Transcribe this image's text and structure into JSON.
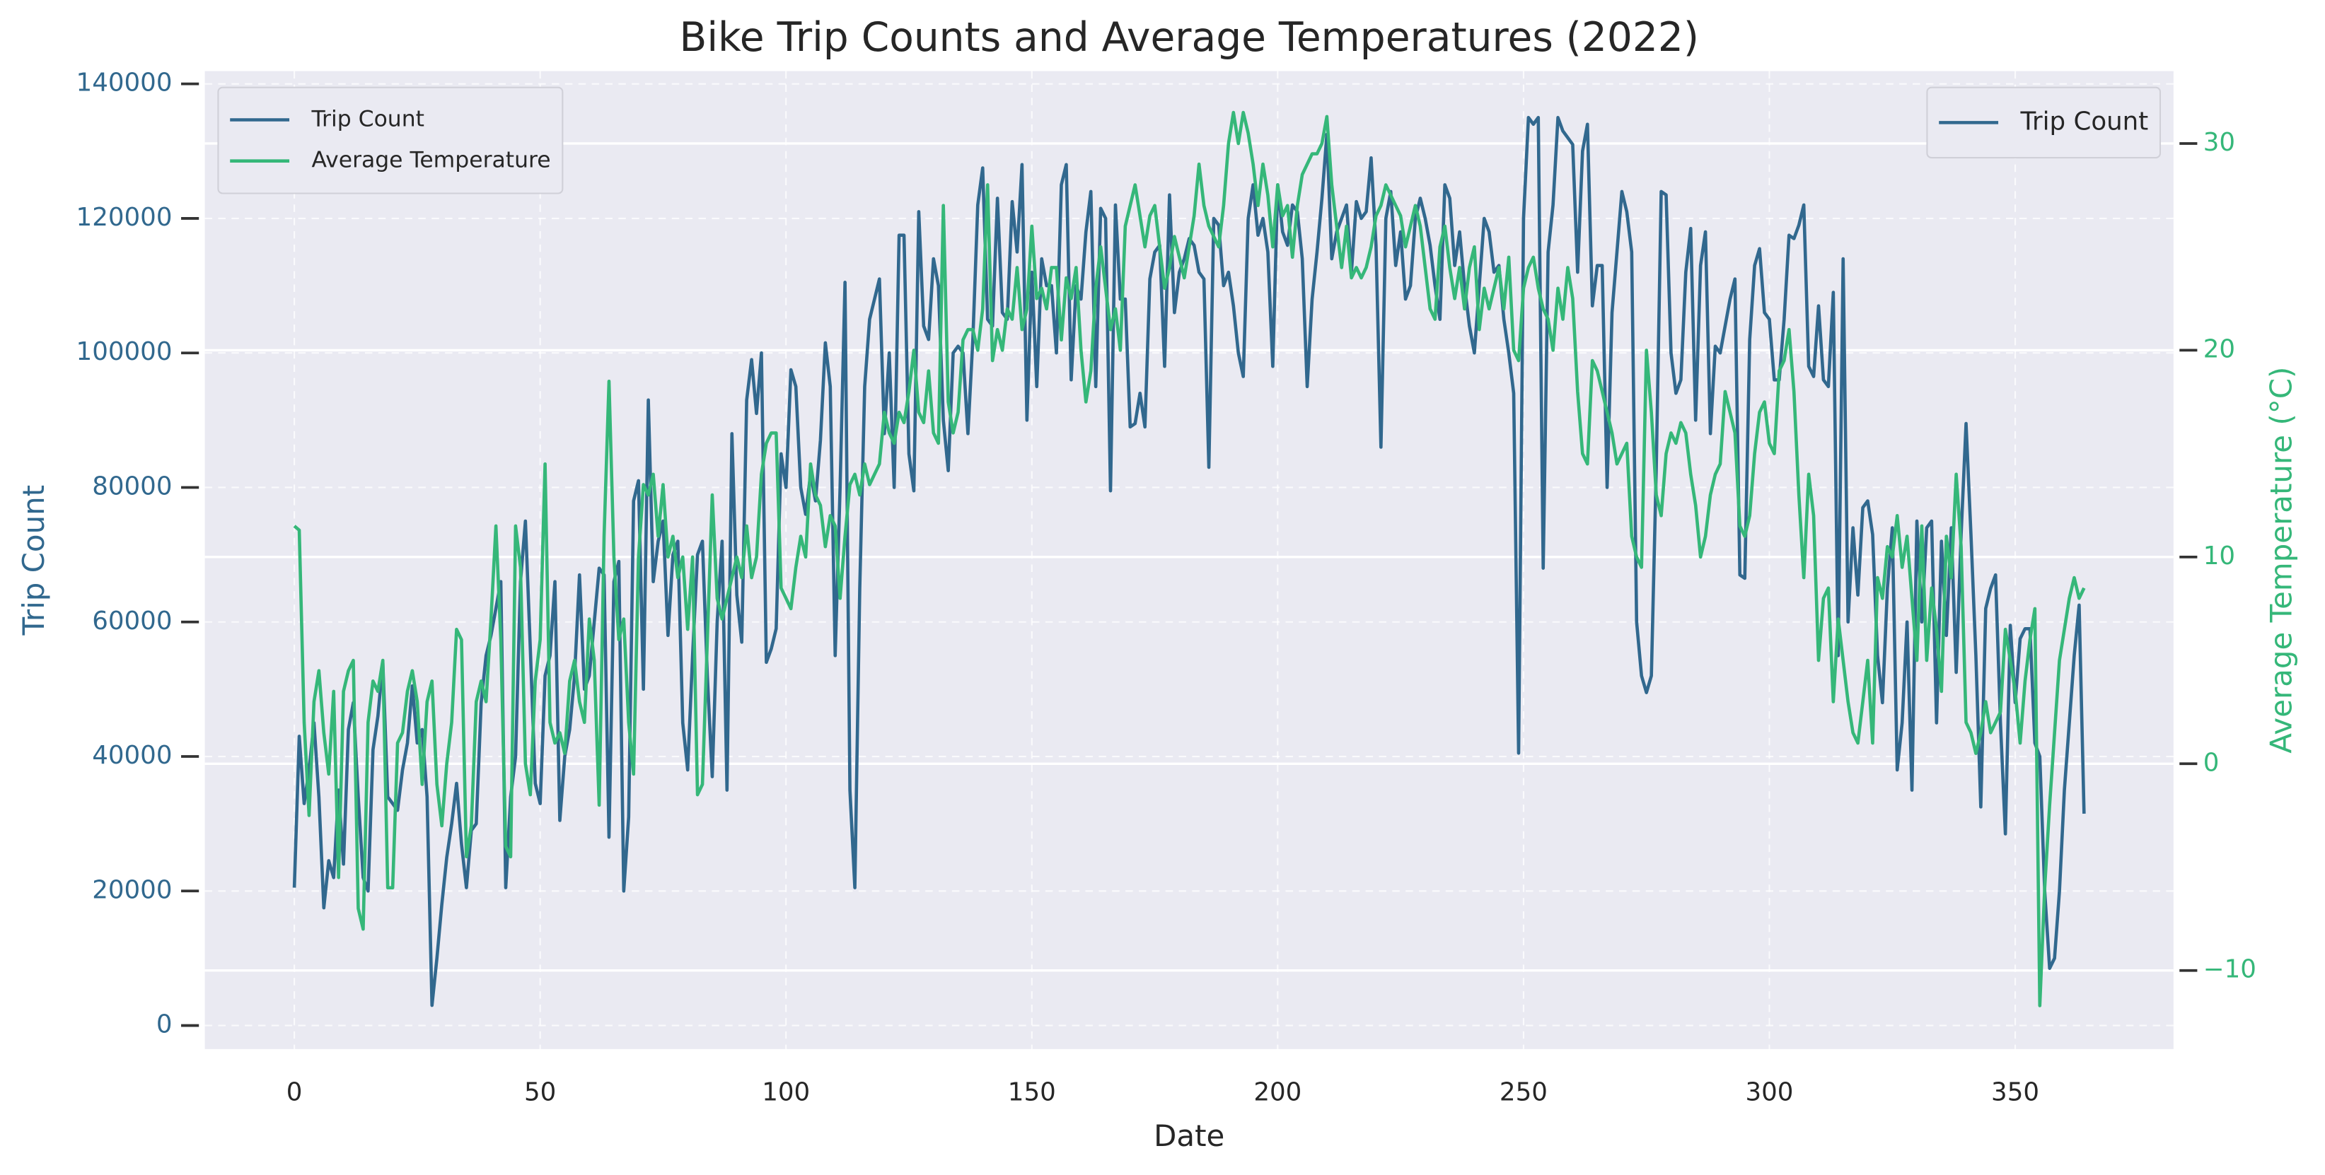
{
  "chart_data": {
    "type": "line",
    "title": "Bike Trip Counts and Average Temperatures (2022)",
    "xlabel": "Date",
    "ylabel": "Trip Count",
    "y2label": "Average Temperature (°C)",
    "x": [
      0,
      1,
      2,
      3,
      4,
      5,
      6,
      7,
      8,
      9,
      10,
      11,
      12,
      13,
      14,
      15,
      16,
      17,
      18,
      19,
      20,
      21,
      22,
      23,
      24,
      25,
      26,
      27,
      28,
      29,
      30,
      31,
      32,
      33,
      34,
      35,
      36,
      37,
      38,
      39,
      40,
      41,
      42,
      43,
      44,
      45,
      46,
      47,
      48,
      49,
      50,
      51,
      52,
      53,
      54,
      55,
      56,
      57,
      58,
      59,
      60,
      61,
      62,
      63,
      64,
      65,
      66,
      67,
      68,
      69,
      70,
      71,
      72,
      73,
      74,
      75,
      76,
      77,
      78,
      79,
      80,
      81,
      82,
      83,
      84,
      85,
      86,
      87,
      88,
      89,
      90,
      91,
      92,
      93,
      94,
      95,
      96,
      97,
      98,
      99,
      100,
      101,
      102,
      103,
      104,
      105,
      106,
      107,
      108,
      109,
      110,
      111,
      112,
      113,
      114,
      115,
      116,
      117,
      118,
      119,
      120,
      121,
      122,
      123,
      124,
      125,
      126,
      127,
      128,
      129,
      130,
      131,
      132,
      133,
      134,
      135,
      136,
      137,
      138,
      139,
      140,
      141,
      142,
      143,
      144,
      145,
      146,
      147,
      148,
      149,
      150,
      151,
      152,
      153,
      154,
      155,
      156,
      157,
      158,
      159,
      160,
      161,
      162,
      163,
      164,
      165,
      166,
      167,
      168,
      169,
      170,
      171,
      172,
      173,
      174,
      175,
      176,
      177,
      178,
      179,
      180,
      181,
      182,
      183,
      184,
      185,
      186,
      187,
      188,
      189,
      190,
      191,
      192,
      193,
      194,
      195,
      196,
      197,
      198,
      199,
      200,
      201,
      202,
      203,
      204,
      205,
      206,
      207,
      208,
      209,
      210,
      211,
      212,
      213,
      214,
      215,
      216,
      217,
      218,
      219,
      220,
      221,
      222,
      223,
      224,
      225,
      226,
      227,
      228,
      229,
      230,
      231,
      232,
      233,
      234,
      235,
      236,
      237,
      238,
      239,
      240,
      241,
      242,
      243,
      244,
      245,
      246,
      247,
      248,
      249,
      250,
      251,
      252,
      253,
      254,
      255,
      256,
      257,
      258,
      259,
      260,
      261,
      262,
      263,
      264,
      265,
      266,
      267,
      268,
      269,
      270,
      271,
      272,
      273,
      274,
      275,
      276,
      277,
      278,
      279,
      280,
      281,
      282,
      283,
      284,
      285,
      286,
      287,
      288,
      289,
      290,
      291,
      292,
      293,
      294,
      295,
      296,
      297,
      298,
      299,
      300,
      301,
      302,
      303,
      304,
      305,
      306,
      307,
      308,
      309,
      310,
      311,
      312,
      313,
      314,
      315,
      316,
      317,
      318,
      319,
      320,
      321,
      322,
      323,
      324,
      325,
      326,
      327,
      328,
      329,
      330,
      331,
      332,
      333,
      334,
      335,
      336,
      337,
      338,
      339,
      340,
      341,
      342,
      343,
      344,
      345,
      346,
      347,
      348,
      349,
      350,
      351,
      352,
      353,
      354,
      355,
      356,
      357,
      358,
      359,
      360,
      361,
      362,
      363,
      364
    ],
    "series": [
      {
        "name": "Trip Count",
        "color": "#31688e",
        "axis": "y",
        "values": [
          20500,
          43000,
          33000,
          38000,
          45000,
          34000,
          17500,
          24500,
          22000,
          35000,
          24000,
          44000,
          48000,
          34000,
          22000,
          20000,
          41000,
          46000,
          54000,
          34000,
          33000,
          32000,
          38000,
          42000,
          50500,
          42000,
          44000,
          34000,
          3000,
          10000,
          18000,
          25000,
          30000,
          36000,
          27000,
          20500,
          29000,
          30000,
          48000,
          55000,
          58000,
          62000,
          66000,
          20500,
          34000,
          40000,
          66000,
          75000,
          56000,
          36000,
          33000,
          52000,
          55000,
          66000,
          30500,
          40000,
          44000,
          52000,
          67000,
          50000,
          52000,
          60000,
          68000,
          67000,
          28000,
          66000,
          69000,
          20000,
          31000,
          78000,
          81000,
          50000,
          93000,
          66000,
          72000,
          75000,
          58000,
          70000,
          72000,
          45000,
          38000,
          55000,
          70000,
          72000,
          52000,
          37000,
          60000,
          72000,
          35000,
          88000,
          64000,
          57000,
          93000,
          99000,
          91000,
          100000,
          54000,
          56000,
          59000,
          85000,
          80000,
          97500,
          95000,
          80000,
          76000,
          82000,
          78000,
          87000,
          101500,
          95000,
          55000,
          80000,
          110500,
          35000,
          20500,
          65000,
          95000,
          105000,
          108000,
          111000,
          88000,
          100000,
          80000,
          117500,
          117500,
          85000,
          79500,
          121000,
          104000,
          102000,
          114000,
          110000,
          90000,
          82500,
          100000,
          101000,
          100000,
          88000,
          102000,
          122000,
          127500,
          105000,
          104000,
          123000,
          106000,
          105000,
          122500,
          115000,
          128000,
          90000,
          112000,
          95000,
          114000,
          110000,
          110000,
          100000,
          125000,
          128000,
          96000,
          110000,
          108000,
          118000,
          124000,
          95000,
          121500,
          120000,
          79500,
          122000,
          108000,
          108000,
          89000,
          89500,
          94000,
          89000,
          111000,
          115000,
          116000,
          98000,
          123500,
          106000,
          112000,
          114000,
          117000,
          116000,
          112000,
          111000,
          83000,
          120000,
          119000,
          110000,
          112000,
          107000,
          100000,
          96500,
          120000,
          125000,
          117500,
          120000,
          115000,
          98000,
          125000,
          118000,
          116000,
          122000,
          121000,
          114000,
          95000,
          108000,
          115000,
          123000,
          132500,
          114000,
          118000,
          120000,
          122000,
          112000,
          122500,
          120000,
          121000,
          129000,
          116000,
          86000,
          120000,
          124000,
          113000,
          118000,
          108000,
          110000,
          120000,
          123000,
          120000,
          116000,
          110000,
          105000,
          125000,
          123000,
          113000,
          118000,
          110000,
          104000,
          100000,
          110000,
          120000,
          118000,
          112000,
          113000,
          105000,
          100000,
          94000,
          40500,
          120000,
          135000,
          134000,
          135000,
          68000,
          115000,
          122000,
          135000,
          133000,
          132000,
          131000,
          112000,
          130000,
          134000,
          107000,
          113000,
          113000,
          80000,
          106000,
          115000,
          124000,
          121000,
          115000,
          60000,
          52000,
          49500,
          52000,
          83000,
          124000,
          123500,
          100000,
          94000,
          96000,
          112000,
          118500,
          90000,
          113000,
          118000,
          88000,
          101000,
          100000,
          104000,
          108000,
          111000,
          67000,
          66500,
          102000,
          113000,
          115500,
          106000,
          105000,
          96000,
          96000,
          105000,
          117500,
          117000,
          119000,
          122000,
          98000,
          96500,
          107000,
          96000,
          95000,
          109000,
          55000,
          114000,
          60000,
          74000,
          64000,
          77000,
          78000,
          73000,
          55000,
          48000,
          65000,
          74000,
          38000,
          45000,
          60000,
          35000,
          75000,
          60000,
          74000,
          75000,
          45000,
          72000,
          58000,
          74000,
          52500,
          73000,
          89500,
          73000,
          55000,
          32500,
          62000,
          65000,
          67000,
          45000,
          28500,
          59500,
          48000,
          57500,
          59000,
          59000,
          42000,
          40000,
          20000,
          8500,
          10000,
          20000,
          35000,
          45000,
          55000,
          62500,
          31500
        ]
      },
      {
        "name": "Average Temperature",
        "color": "#35b779",
        "axis": "y2",
        "values": [
          11.5,
          11.3,
          2,
          -2.5,
          3,
          4.5,
          1.5,
          -0.5,
          3.5,
          -5.5,
          3.5,
          4.5,
          5,
          -7,
          -8,
          2,
          4,
          3.5,
          5,
          -6,
          -6,
          1,
          1.5,
          3.5,
          4.5,
          3,
          -1,
          3,
          4,
          -1,
          -3,
          0,
          2,
          6.5,
          6,
          -4.5,
          -3,
          3,
          4,
          3,
          7,
          11.5,
          6,
          -4,
          -4.5,
          11.5,
          9.5,
          0,
          -1.5,
          4,
          6,
          14.5,
          2,
          1,
          1.5,
          0.5,
          4,
          5,
          3,
          2,
          7,
          5,
          -2,
          11,
          18.5,
          10,
          6,
          7,
          2,
          -0.5,
          10,
          13.5,
          13,
          14,
          11,
          13.5,
          10,
          11,
          9,
          10,
          6.5,
          10,
          -1.5,
          -1,
          6,
          13,
          8,
          7,
          8,
          9,
          10,
          9,
          11.5,
          9,
          10,
          14,
          15.5,
          16,
          16,
          8.5,
          8,
          7.5,
          9.5,
          11,
          10,
          14.5,
          13,
          12.5,
          10.5,
          12,
          11.5,
          8,
          11,
          13.5,
          14,
          13,
          14.5,
          13.5,
          14,
          14.5,
          17,
          16,
          15.5,
          17,
          16.5,
          18,
          20,
          17,
          16.5,
          19,
          16,
          15.5,
          27,
          17.5,
          16,
          17,
          20.5,
          21,
          21,
          20,
          22,
          28,
          19.5,
          21,
          20,
          22,
          21.5,
          24,
          21,
          22,
          26,
          22.5,
          23,
          22,
          24,
          24,
          20.5,
          23.5,
          22.5,
          24,
          20,
          17.5,
          19,
          23,
          25,
          23,
          21,
          22,
          20,
          26,
          27,
          28,
          26.5,
          25,
          26.5,
          27,
          25,
          23,
          24,
          25.5,
          24.5,
          23.5,
          25,
          26.5,
          29,
          27,
          26,
          25.5,
          25,
          27,
          30,
          31.5,
          30,
          31.5,
          30.5,
          29,
          27,
          29,
          27.5,
          25,
          28,
          26.5,
          27,
          24.5,
          27,
          28.5,
          29,
          29.5,
          29.5,
          30,
          31.3,
          28,
          26,
          24,
          26,
          23.5,
          24,
          23.5,
          24,
          25,
          26.5,
          27,
          28,
          27.5,
          27,
          26.5,
          25,
          26,
          27,
          26,
          24,
          22,
          21.5,
          25,
          26,
          24,
          22.5,
          24,
          22,
          24,
          25,
          21,
          23,
          22,
          23,
          24,
          22,
          24.5,
          20,
          19.5,
          23,
          24,
          24.5,
          23,
          22,
          21.5,
          20,
          23,
          21.5,
          24,
          22.5,
          18,
          15,
          14.5,
          19.5,
          19,
          18,
          17,
          16,
          14.5,
          15,
          15.5,
          11,
          10,
          9.5,
          20,
          17,
          13,
          12,
          15,
          16,
          15.5,
          16.5,
          16,
          14,
          12.5,
          10,
          11,
          13,
          14,
          14.5,
          18,
          17,
          16,
          11.5,
          11,
          12,
          15,
          17,
          17.5,
          15.5,
          15,
          19,
          19.5,
          21,
          18,
          13,
          9,
          14,
          12,
          5,
          8,
          8.5,
          3,
          7,
          5,
          3,
          1.5,
          1,
          3,
          5,
          1,
          9,
          8,
          10.5,
          10,
          12,
          9.5,
          11,
          8,
          5,
          11.5,
          5,
          8.5,
          6.5,
          3.5,
          11,
          9,
          14,
          10.5,
          2,
          1.5,
          0.5,
          1.5,
          3,
          1.5,
          2,
          2.5,
          6.5,
          5,
          3.5,
          1,
          4,
          6,
          7.5,
          -11.7,
          -6,
          -2,
          1.5,
          5,
          6.5,
          8,
          9,
          8,
          8.5
        ]
      }
    ],
    "xlim": [
      -18.2,
      382.2
    ],
    "xticks": [
      0,
      50,
      100,
      150,
      200,
      250,
      300,
      350
    ],
    "ylim": [
      -3500,
      141900
    ],
    "yticks": [
      0,
      20000,
      40000,
      60000,
      80000,
      100000,
      120000,
      140000
    ],
    "y2lim": [
      -13.8,
      33.5
    ],
    "y2ticks": [
      {
        "value": -10,
        "label": "−10"
      },
      0,
      10,
      20,
      30
    ],
    "grid": true,
    "y2grid": true,
    "legends": [
      {
        "loc": "upper left",
        "entries": [
          "Trip Count",
          "Average Temperature"
        ]
      },
      {
        "loc": "upper right",
        "entries": [
          "Trip Count"
        ]
      }
    ]
  }
}
